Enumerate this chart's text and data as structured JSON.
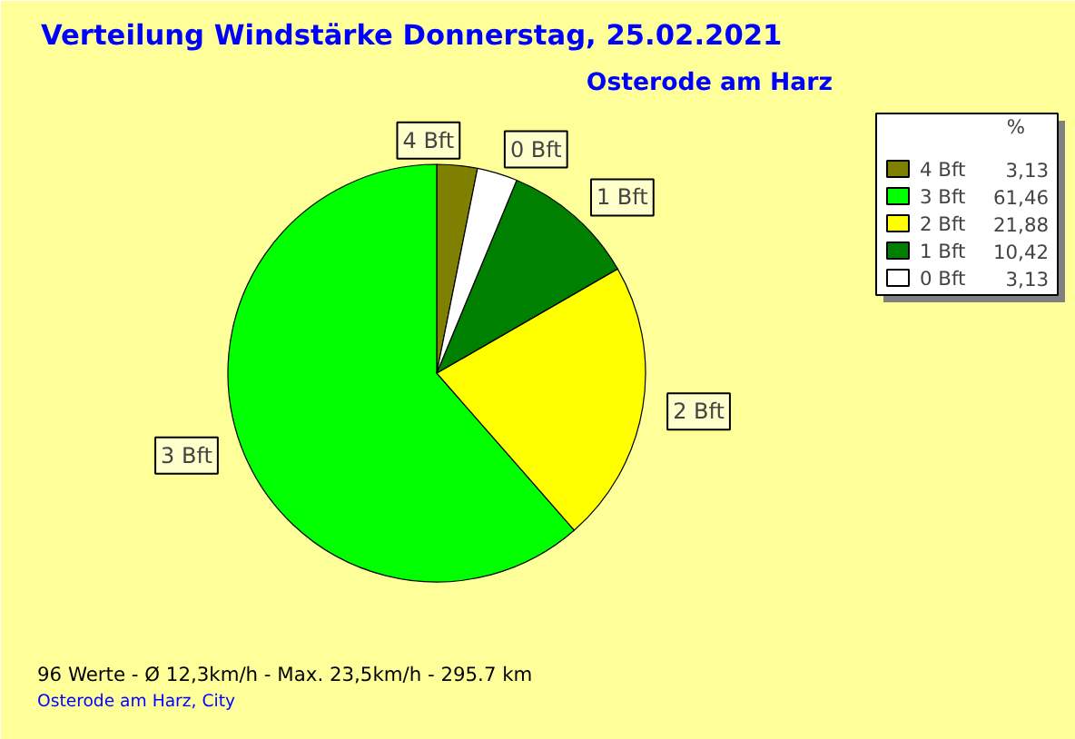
{
  "chart_data": {
    "type": "pie",
    "title": "Verteilung Windstärke  Donnerstag, 25.02.2021",
    "subtitle": "Osterode am Harz",
    "categories": [
      "4 Bft",
      "3 Bft",
      "2 Bft",
      "1 Bft",
      "0 Bft"
    ],
    "values": [
      3.13,
      61.46,
      21.88,
      10.42,
      3.13
    ],
    "value_labels": [
      "3,13",
      "61,46",
      "21,88",
      "10,42",
      "3,13"
    ],
    "colors": [
      "#808000",
      "#00ff00",
      "#ffff00",
      "#008000",
      "#ffffff"
    ],
    "legend": "top right",
    "legend_title": "%",
    "annotations": [
      "96 Werte   -   Ø 12,3km/h  -  Max. 23,5km/h   -   295.7 km",
      "Osterode am Harz, City"
    ]
  }
}
